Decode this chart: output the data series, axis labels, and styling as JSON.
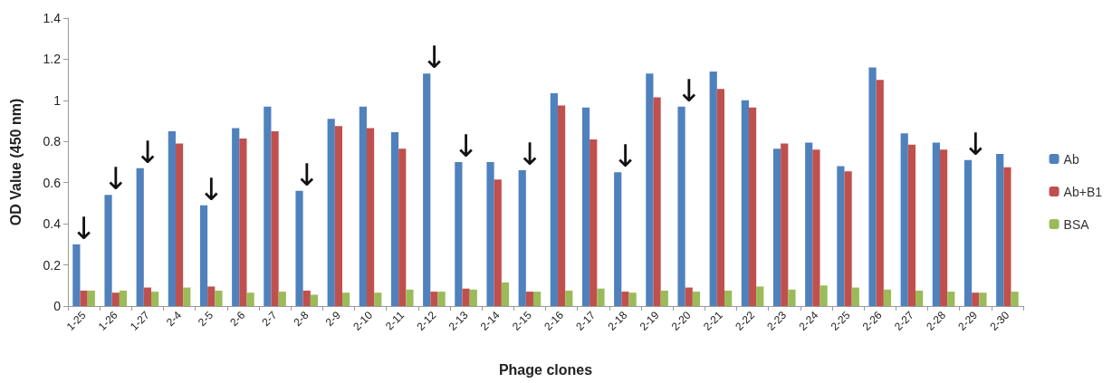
{
  "chart_data": {
    "type": "bar",
    "xlabel": "Phage clones",
    "ylabel": "OD Value (450 nm)",
    "categories": [
      "1-25",
      "1-26",
      "1-27",
      "2-4",
      "2-5",
      "2-6",
      "2-7",
      "2-8",
      "2-9",
      "2-10",
      "2-11",
      "2-12",
      "2-13",
      "2-14",
      "2-15",
      "2-16",
      "2-17",
      "2-18",
      "2-19",
      "2-20",
      "2-21",
      "2-22",
      "2-23",
      "2-24",
      "2-25",
      "2-26",
      "2-27",
      "2-28",
      "2-29",
      "2-30"
    ],
    "series": [
      {
        "name": "Ab",
        "color": "#4f81bd",
        "values": [
          0.3,
          0.54,
          0.67,
          0.85,
          0.49,
          0.865,
          0.97,
          0.56,
          0.91,
          0.97,
          0.845,
          1.13,
          0.7,
          0.7,
          0.66,
          1.035,
          0.965,
          0.65,
          1.13,
          0.97,
          1.14,
          1.0,
          0.765,
          0.795,
          0.68,
          1.16,
          0.84,
          0.795,
          0.71,
          0.74
        ]
      },
      {
        "name": "Ab+B1",
        "color": "#c0504d",
        "values": [
          0.075,
          0.065,
          0.09,
          0.79,
          0.095,
          0.815,
          0.85,
          0.075,
          0.875,
          0.865,
          0.765,
          0.07,
          0.085,
          0.615,
          0.07,
          0.975,
          0.81,
          0.07,
          1.015,
          0.09,
          1.055,
          0.965,
          0.79,
          0.76,
          0.655,
          1.1,
          0.785,
          0.76,
          0.065,
          0.675
        ]
      },
      {
        "name": "BSA",
        "color": "#9bbb59",
        "values": [
          0.075,
          0.075,
          0.07,
          0.09,
          0.075,
          0.065,
          0.07,
          0.055,
          0.065,
          0.065,
          0.08,
          0.07,
          0.08,
          0.115,
          0.07,
          0.075,
          0.085,
          0.065,
          0.075,
          0.07,
          0.075,
          0.095,
          0.08,
          0.1,
          0.09,
          0.08,
          0.075,
          0.07,
          0.065,
          0.07
        ]
      }
    ],
    "ylim": [
      0,
      1.4
    ],
    "yticks": [
      0,
      0.2,
      0.4,
      0.6,
      0.8,
      1,
      1.2,
      1.4
    ],
    "grid": false,
    "legend": "right",
    "annotations": [
      {
        "text": "↓",
        "x": "1-25",
        "y": 0.3
      },
      {
        "text": "↓",
        "x": "1-26",
        "y": 0.54
      },
      {
        "text": "↓",
        "x": "1-27",
        "y": 0.67
      },
      {
        "text": "↓",
        "x": "2-5",
        "y": 0.49
      },
      {
        "text": "↓",
        "x": "2-8",
        "y": 0.56
      },
      {
        "text": "↓",
        "x": "2-12",
        "y": 1.13
      },
      {
        "text": "↓",
        "x": "2-13",
        "y": 0.7
      },
      {
        "text": "↓",
        "x": "2-15",
        "y": 0.66
      },
      {
        "text": "↓",
        "x": "2-18",
        "y": 0.65
      },
      {
        "text": "↓",
        "x": "2-20",
        "y": 0.97
      },
      {
        "text": "↓",
        "x": "2-29",
        "y": 0.71
      }
    ]
  }
}
